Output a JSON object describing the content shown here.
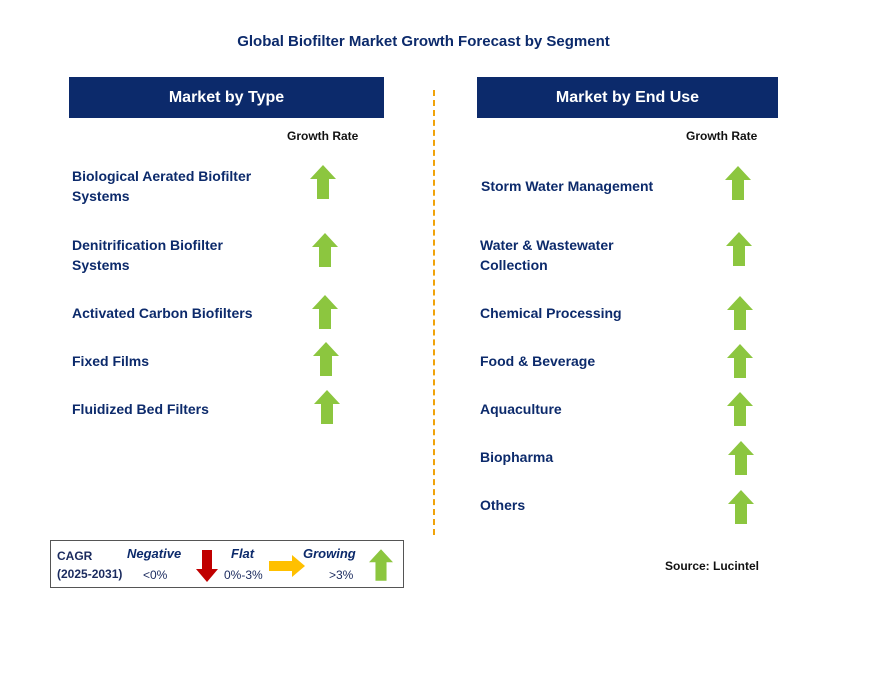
{
  "title": "Global Biofilter Market Growth Forecast by Segment",
  "left_panel": {
    "header": "Market by Type",
    "growth_rate_label": "Growth Rate",
    "items": [
      {
        "line1": "Biological Aerated Biofilter",
        "line2": "Systems",
        "trend": "growing"
      },
      {
        "line1": "Denitrification Biofilter",
        "line2": "Systems",
        "trend": "growing"
      },
      {
        "line1": "Activated Carbon Biofilters",
        "line2": "",
        "trend": "growing"
      },
      {
        "line1": "Fixed Films",
        "line2": "",
        "trend": "growing"
      },
      {
        "line1": "Fluidized Bed Filters",
        "line2": "",
        "trend": "growing"
      }
    ]
  },
  "right_panel": {
    "header": "Market by End Use",
    "growth_rate_label": "Growth Rate",
    "items": [
      {
        "line1": "Storm Water Management",
        "line2": "",
        "trend": "growing"
      },
      {
        "line1": "Water & Wastewater",
        "line2": "Collection",
        "trend": "growing"
      },
      {
        "line1": "Chemical Processing",
        "line2": "",
        "trend": "growing"
      },
      {
        "line1": "Food & Beverage",
        "line2": "",
        "trend": "growing"
      },
      {
        "line1": "Aquaculture",
        "line2": "",
        "trend": "growing"
      },
      {
        "line1": "Biopharma",
        "line2": "",
        "trend": "growing"
      },
      {
        "line1": "Others",
        "line2": "",
        "trend": "growing"
      }
    ]
  },
  "legend": {
    "cagr_label": "CAGR",
    "period": "(2025-2031)",
    "negative_label": "Negative",
    "negative_value": "<0%",
    "flat_label": "Flat",
    "flat_value": "0%-3%",
    "growing_label": "Growing",
    "growing_value": ">3%"
  },
  "source": "Source: Lucintel",
  "colors": {
    "navy": "#0c2a6b",
    "growing": "#8cc63f",
    "negative": "#c00000",
    "flat": "#ffc000",
    "divider": "#f0a30a"
  }
}
